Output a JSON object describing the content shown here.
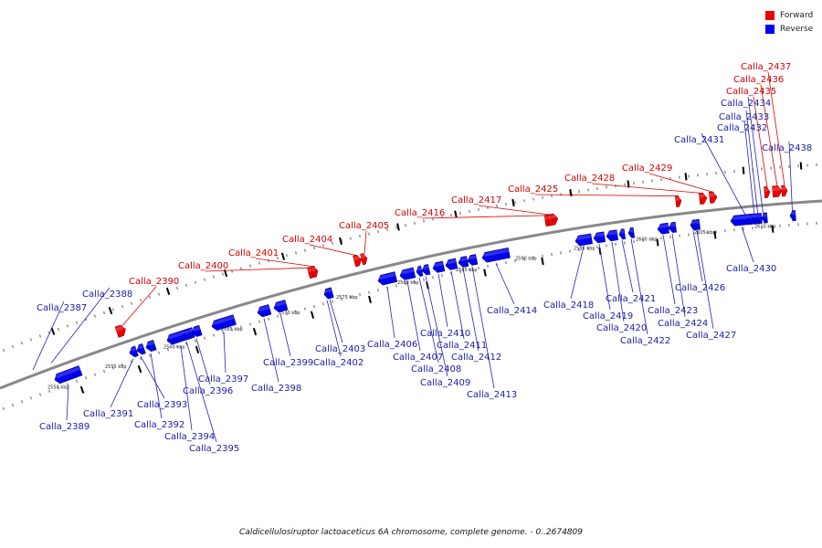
{
  "caption": "Caldicellulosiruptor lactoaceticus 6A chromosome, complete genome. - 0..2674809",
  "legend": [
    {
      "label": "Forward",
      "color": "#ee0000"
    },
    {
      "label": "Reverse",
      "color": "#0000ee"
    }
  ],
  "colors": {
    "forward": "#ee0000",
    "reverse": "#0000ee",
    "forward_text": "#d40000",
    "reverse_text": "#1a1aa8",
    "axis": "#888888"
  },
  "kbp_ticks": [
    "2550 kbp",
    "2555 kbp",
    "2560 kbp",
    "2565 kbp",
    "2570 kbp",
    "2575 kbp",
    "2580 kbp",
    "2585 kbp",
    "2590 kbp",
    "2595 kbp",
    "2600 kbp",
    "2605 kbp",
    "2610 kbp"
  ],
  "genes": [
    {
      "label": "Calla_2387",
      "strand": "reverse"
    },
    {
      "label": "Calla_2388",
      "strand": "reverse"
    },
    {
      "label": "Calla_2389",
      "strand": "reverse"
    },
    {
      "label": "Calla_2390",
      "strand": "forward"
    },
    {
      "label": "Calla_2391",
      "strand": "reverse"
    },
    {
      "label": "Calla_2392",
      "strand": "reverse"
    },
    {
      "label": "Calla_2393",
      "strand": "reverse"
    },
    {
      "label": "Calla_2394",
      "strand": "reverse"
    },
    {
      "label": "Calla_2395",
      "strand": "reverse"
    },
    {
      "label": "Calla_2396",
      "strand": "reverse"
    },
    {
      "label": "Calla_2397",
      "strand": "reverse"
    },
    {
      "label": "Calla_2398",
      "strand": "reverse"
    },
    {
      "label": "Calla_2399",
      "strand": "reverse"
    },
    {
      "label": "Calla_2400",
      "strand": "forward"
    },
    {
      "label": "Calla_2401",
      "strand": "forward"
    },
    {
      "label": "Calla_2402",
      "strand": "reverse"
    },
    {
      "label": "Calla_2403",
      "strand": "reverse"
    },
    {
      "label": "Calla_2404",
      "strand": "forward"
    },
    {
      "label": "Calla_2405",
      "strand": "forward"
    },
    {
      "label": "Calla_2406",
      "strand": "reverse"
    },
    {
      "label": "Calla_2407",
      "strand": "reverse"
    },
    {
      "label": "Calla_2408",
      "strand": "reverse"
    },
    {
      "label": "Calla_2409",
      "strand": "reverse"
    },
    {
      "label": "Calla_2410",
      "strand": "reverse"
    },
    {
      "label": "Calla_2411",
      "strand": "reverse"
    },
    {
      "label": "Calla_2412",
      "strand": "reverse"
    },
    {
      "label": "Calla_2413",
      "strand": "reverse"
    },
    {
      "label": "Calla_2414",
      "strand": "reverse"
    },
    {
      "label": "Calla_2416",
      "strand": "forward"
    },
    {
      "label": "Calla_2417",
      "strand": "forward"
    },
    {
      "label": "Calla_2418",
      "strand": "reverse"
    },
    {
      "label": "Calla_2419",
      "strand": "reverse"
    },
    {
      "label": "Calla_2420",
      "strand": "reverse"
    },
    {
      "label": "Calla_2421",
      "strand": "reverse"
    },
    {
      "label": "Calla_2422",
      "strand": "reverse"
    },
    {
      "label": "Calla_2423",
      "strand": "reverse"
    },
    {
      "label": "Calla_2424",
      "strand": "reverse"
    },
    {
      "label": "Calla_2425",
      "strand": "forward"
    },
    {
      "label": "Calla_2426",
      "strand": "reverse"
    },
    {
      "label": "Calla_2427",
      "strand": "reverse"
    },
    {
      "label": "Calla_2428",
      "strand": "forward"
    },
    {
      "label": "Calla_2429",
      "strand": "forward"
    },
    {
      "label": "Calla_2430",
      "strand": "reverse"
    },
    {
      "label": "Calla_2431",
      "strand": "reverse"
    },
    {
      "label": "Calla_2432",
      "strand": "reverse"
    },
    {
      "label": "Calla_2433",
      "strand": "reverse"
    },
    {
      "label": "Calla_2434",
      "strand": "reverse"
    },
    {
      "label": "Calla_2435",
      "strand": "forward"
    },
    {
      "label": "Calla_2436",
      "strand": "forward"
    },
    {
      "label": "Calla_2437",
      "strand": "forward"
    },
    {
      "label": "Calla_2438",
      "strand": "reverse"
    }
  ]
}
